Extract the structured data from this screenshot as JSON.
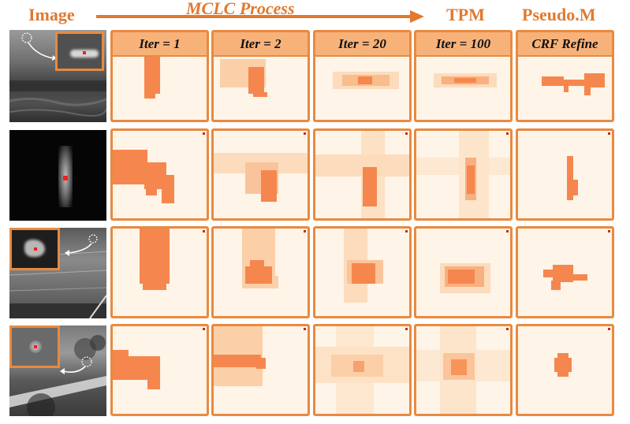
{
  "headers": {
    "image": "Image",
    "process": "MCLC Process",
    "tpm": "TPM",
    "pseudo": "Pseudo.M"
  },
  "columns": [
    "Iter = 1",
    "Iter = 2",
    "Iter = 20",
    "Iter = 100",
    "CRF Refine"
  ],
  "colors": {
    "accent": "#e07a2e",
    "panel_bg": "#fef4e8",
    "panel_border": "#e88a40",
    "label_bg": "#f7b27a",
    "mask": "#f5874e",
    "target": "#ff1a1a"
  },
  "icons": [
    "callout-arrow-icon",
    "target-circle-icon",
    "process-arrow-icon"
  ]
}
